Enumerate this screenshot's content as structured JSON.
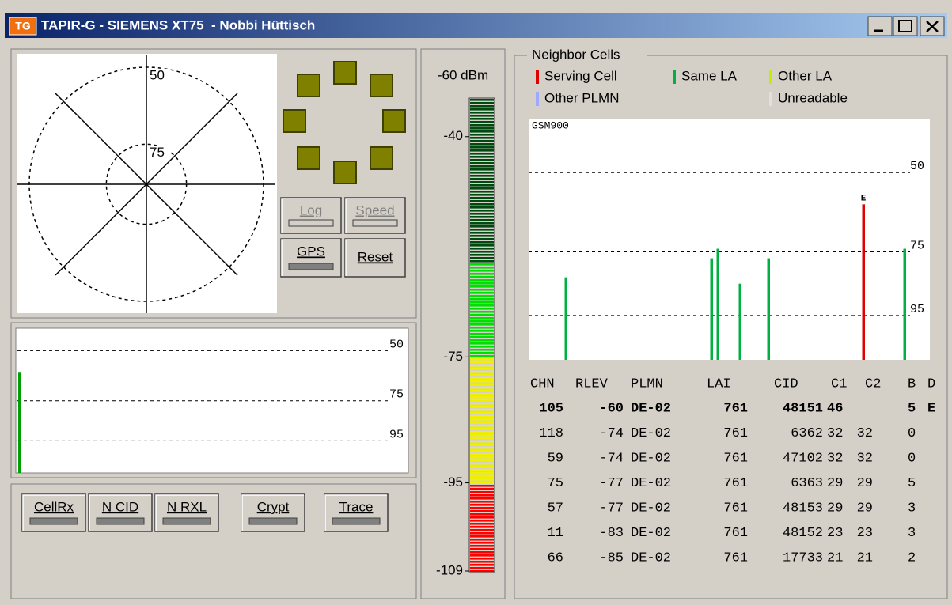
{
  "window": {
    "icon": "TG",
    "title": "TAPIR-G - SIEMENS XT75  - Nobbi Hüttisch"
  },
  "polar": {
    "rings": [
      {
        "value": -50,
        "label": "50"
      },
      {
        "value": -75,
        "label": "75"
      }
    ],
    "rlim": [
      -88,
      -50
    ]
  },
  "controls": {
    "log": "Log",
    "speed": "Speed",
    "gps": "GPS",
    "reset": "Reset"
  },
  "history": {
    "ylim": [
      -40,
      -111
    ],
    "yticks": [
      {
        "value": -50,
        "label": "50"
      },
      {
        "value": -75,
        "label": "75"
      },
      {
        "value": -95,
        "label": "95"
      }
    ],
    "values": [
      -61
    ],
    "color": "#00a000"
  },
  "toolbar": [
    "CellRx",
    "N CID",
    "N RXL",
    "Crypt",
    "Trace"
  ],
  "meter": {
    "reading": -60,
    "reading_label": "-60 dBm",
    "lim": [
      -34,
      -109
    ],
    "ticks": [
      -40,
      -75,
      -95,
      -109
    ]
  },
  "neighbors": {
    "title": "Neighbor Cells",
    "legend": [
      {
        "name": "Serving Cell",
        "color": "#e00000"
      },
      {
        "name": "Same LA",
        "color": "#00b040"
      },
      {
        "name": "Other LA",
        "color": "#c0f000"
      },
      {
        "name": "Other PLMN",
        "color": "#a0a8ff"
      },
      {
        "name": "Unreadable",
        "color": "#e0e0e0"
      }
    ],
    "band": "GSM900",
    "xlim": [
      0,
      126
    ],
    "ylim": [
      -33,
      -109
    ],
    "yticks": [
      {
        "value": -50,
        "label": "50"
      },
      {
        "value": -75,
        "label": "75"
      },
      {
        "value": -95,
        "label": "95"
      }
    ],
    "columns": [
      "CHN",
      "RLEV",
      "PLMN",
      "LAI",
      "CID",
      "C1",
      "C2",
      "B",
      "D"
    ],
    "rows": [
      {
        "chn": 105,
        "rlev": -60,
        "plmn": "DE-02",
        "lai": 761,
        "cid": 48151,
        "c1": 46,
        "b": 5,
        "d": "E"
      },
      {
        "chn": 118,
        "rlev": -74,
        "plmn": "DE-02",
        "lai": 761,
        "cid": 6362,
        "c1": 32,
        "c2": 32,
        "b": 0
      },
      {
        "chn": 59,
        "rlev": -74,
        "plmn": "DE-02",
        "lai": 761,
        "cid": 47102,
        "c1": 32,
        "c2": 32,
        "b": 0
      },
      {
        "chn": 75,
        "rlev": -77,
        "plmn": "DE-02",
        "lai": 761,
        "cid": 6363,
        "c1": 29,
        "c2": 29,
        "b": 5
      },
      {
        "chn": 57,
        "rlev": -77,
        "plmn": "DE-02",
        "lai": 761,
        "cid": 48153,
        "c1": 29,
        "c2": 29,
        "b": 3
      },
      {
        "chn": 11,
        "rlev": -83,
        "plmn": "DE-02",
        "lai": 761,
        "cid": 48152,
        "c1": 23,
        "c2": 23,
        "b": 3
      },
      {
        "chn": 66,
        "rlev": -85,
        "plmn": "DE-02",
        "lai": 761,
        "cid": 17733,
        "c1": 21,
        "c2": 21,
        "b": 2
      }
    ]
  }
}
